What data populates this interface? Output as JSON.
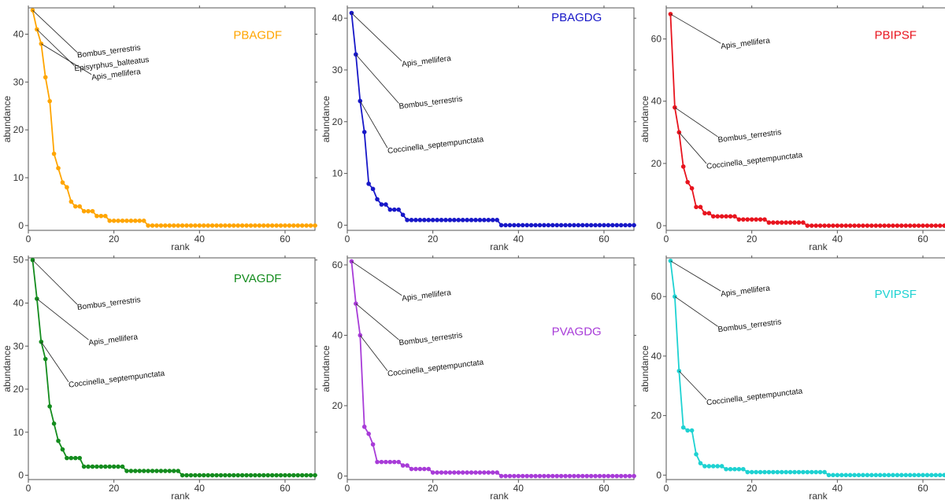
{
  "chart_data": [
    {
      "type": "line",
      "title": "PBAGDF",
      "color": "#FFA500",
      "xlabel": "rank",
      "ylabel": "abundance",
      "xlim": [
        0,
        67
      ],
      "ylim": [
        -1,
        45.5
      ],
      "xticks": [
        0,
        20,
        40,
        60
      ],
      "yticks": [
        0,
        10,
        20,
        30,
        40
      ],
      "values": [
        45,
        41,
        38,
        31,
        26,
        15,
        12,
        9,
        8,
        5,
        4,
        4,
        3,
        3,
        3,
        2,
        2,
        2,
        1,
        1,
        1,
        1,
        1,
        1,
        1,
        1,
        1,
        0,
        0,
        0,
        0,
        0,
        0,
        0,
        0,
        0,
        0,
        0,
        0,
        0,
        0,
        0,
        0,
        0,
        0,
        0,
        0,
        0,
        0,
        0,
        0,
        0,
        0,
        0,
        0,
        0,
        0,
        0,
        0,
        0,
        0,
        0,
        0,
        0,
        0,
        0,
        0
      ],
      "annotations": [
        {
          "rank": 1,
          "text": "Bombus_terrestris"
        },
        {
          "rank": 2,
          "text": "Episyrphus_balteatus"
        },
        {
          "rank": 3,
          "text": "Apis_mellifera"
        }
      ]
    },
    {
      "type": "line",
      "title": "PBAGDG",
      "color": "#1818C8",
      "xlabel": "rank",
      "ylabel": "abundance",
      "xlim": [
        0,
        67
      ],
      "ylim": [
        -1,
        42
      ],
      "xticks": [
        0,
        20,
        40,
        60
      ],
      "yticks": [
        0,
        10,
        20,
        30,
        40
      ],
      "values": [
        41,
        33,
        24,
        18,
        8,
        7,
        5,
        4,
        4,
        3,
        3,
        3,
        2,
        1,
        1,
        1,
        1,
        1,
        1,
        1,
        1,
        1,
        1,
        1,
        1,
        1,
        1,
        1,
        1,
        1,
        1,
        1,
        1,
        1,
        1,
        0,
        0,
        0,
        0,
        0,
        0,
        0,
        0,
        0,
        0,
        0,
        0,
        0,
        0,
        0,
        0,
        0,
        0,
        0,
        0,
        0,
        0,
        0,
        0,
        0,
        0,
        0,
        0,
        0,
        0,
        0,
        0
      ],
      "annotations": [
        {
          "rank": 1,
          "text": "Apis_mellifera"
        },
        {
          "rank": 2,
          "text": "Bombus_terrestris"
        },
        {
          "rank": 3,
          "text": "Coccinella_septempunctata"
        }
      ]
    },
    {
      "type": "line",
      "title": "PBIPSF",
      "color": "#E8141E",
      "xlabel": "rank",
      "ylabel": "abundance",
      "xlim": [
        0,
        67
      ],
      "ylim": [
        -1.5,
        70
      ],
      "xticks": [
        0,
        20,
        40,
        60
      ],
      "yticks": [
        0,
        20,
        40,
        60
      ],
      "values": [
        68,
        38,
        30,
        19,
        14,
        12,
        6,
        6,
        4,
        4,
        3,
        3,
        3,
        3,
        3,
        3,
        2,
        2,
        2,
        2,
        2,
        2,
        2,
        1,
        1,
        1,
        1,
        1,
        1,
        1,
        1,
        1,
        0,
        0,
        0,
        0,
        0,
        0,
        0,
        0,
        0,
        0,
        0,
        0,
        0,
        0,
        0,
        0,
        0,
        0,
        0,
        0,
        0,
        0,
        0,
        0,
        0,
        0,
        0,
        0,
        0,
        0,
        0,
        0,
        0,
        0,
        0
      ],
      "annotations": [
        {
          "rank": 1,
          "text": "Apis_mellifera"
        },
        {
          "rank": 2,
          "text": "Bombus_terrestris"
        },
        {
          "rank": 3,
          "text": "Coccinella_septempunctata"
        }
      ]
    },
    {
      "type": "line",
      "title": "PVAGDF",
      "color": "#148C1E",
      "xlabel": "rank",
      "ylabel": "abundance",
      "xlim": [
        0,
        67
      ],
      "ylim": [
        -1,
        50.5
      ],
      "xticks": [
        0,
        20,
        40,
        60
      ],
      "yticks": [
        0,
        10,
        20,
        30,
        40,
        50
      ],
      "values": [
        50,
        41,
        31,
        27,
        16,
        12,
        8,
        6,
        4,
        4,
        4,
        4,
        2,
        2,
        2,
        2,
        2,
        2,
        2,
        2,
        2,
        2,
        1,
        1,
        1,
        1,
        1,
        1,
        1,
        1,
        1,
        1,
        1,
        1,
        1,
        0,
        0,
        0,
        0,
        0,
        0,
        0,
        0,
        0,
        0,
        0,
        0,
        0,
        0,
        0,
        0,
        0,
        0,
        0,
        0,
        0,
        0,
        0,
        0,
        0,
        0,
        0,
        0,
        0,
        0,
        0,
        0
      ],
      "annotations": [
        {
          "rank": 1,
          "text": "Bombus_terrestris"
        },
        {
          "rank": 2,
          "text": "Apis_mellifera"
        },
        {
          "rank": 3,
          "text": "Coccinella_septempunctata"
        }
      ]
    },
    {
      "type": "line",
      "title": "PVAGDG",
      "color": "#A83CD8",
      "xlabel": "rank",
      "ylabel": "abundance",
      "xlim": [
        0,
        67
      ],
      "ylim": [
        -1,
        62
      ],
      "xticks": [
        0,
        20,
        40,
        60
      ],
      "yticks": [
        0,
        20,
        40,
        60
      ],
      "values": [
        61,
        49,
        40,
        14,
        12,
        9,
        4,
        4,
        4,
        4,
        4,
        4,
        3,
        3,
        2,
        2,
        2,
        2,
        2,
        1,
        1,
        1,
        1,
        1,
        1,
        1,
        1,
        1,
        1,
        1,
        1,
        1,
        1,
        1,
        1,
        0,
        0,
        0,
        0,
        0,
        0,
        0,
        0,
        0,
        0,
        0,
        0,
        0,
        0,
        0,
        0,
        0,
        0,
        0,
        0,
        0,
        0,
        0,
        0,
        0,
        0,
        0,
        0,
        0,
        0,
        0,
        0
      ],
      "annotations": [
        {
          "rank": 1,
          "text": "Apis_mellifera"
        },
        {
          "rank": 2,
          "text": "Bombus_terrestris"
        },
        {
          "rank": 3,
          "text": "Coccinella_septempunctata"
        }
      ]
    },
    {
      "type": "line",
      "title": "PVIPSF",
      "color": "#1ED2D2",
      "xlabel": "rank",
      "ylabel": "abundance",
      "xlim": [
        0,
        67
      ],
      "ylim": [
        -1.5,
        73
      ],
      "xticks": [
        0,
        20,
        40,
        60
      ],
      "yticks": [
        0,
        20,
        40,
        60
      ],
      "values": [
        72,
        60,
        35,
        16,
        15,
        15,
        7,
        4,
        3,
        3,
        3,
        3,
        3,
        2,
        2,
        2,
        2,
        2,
        1,
        1,
        1,
        1,
        1,
        1,
        1,
        1,
        1,
        1,
        1,
        1,
        1,
        1,
        1,
        1,
        1,
        1,
        1,
        0,
        0,
        0,
        0,
        0,
        0,
        0,
        0,
        0,
        0,
        0,
        0,
        0,
        0,
        0,
        0,
        0,
        0,
        0,
        0,
        0,
        0,
        0,
        0,
        0,
        0,
        0,
        0,
        0,
        0
      ],
      "annotations": [
        {
          "rank": 1,
          "text": "Apis_mellifera"
        },
        {
          "rank": 2,
          "text": "Bombus_terrestris"
        },
        {
          "rank": 3,
          "text": "Coccinella_septempunctata"
        }
      ]
    }
  ]
}
